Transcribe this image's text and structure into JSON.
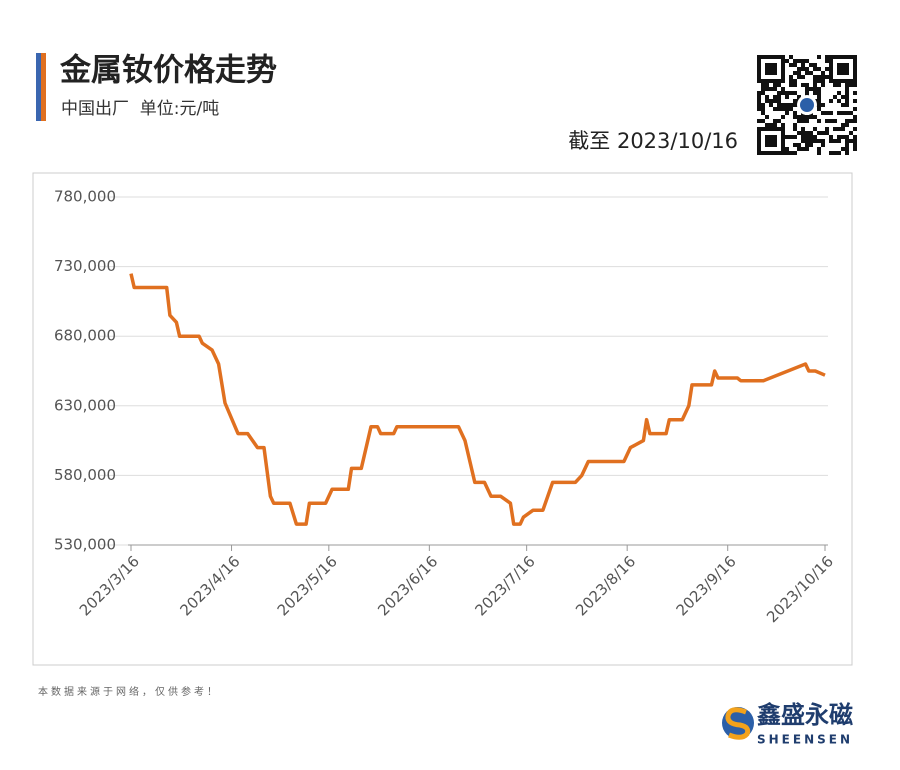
{
  "chart_data": {
    "type": "line",
    "title": "金属钕价格走势",
    "subtitle": "中国出厂  单位:元/吨",
    "date_note": "截至 2023/10/16",
    "source": "本数据来源于网络，仅供参考！",
    "brand": "鑫盛永磁",
    "brand_latin": "SHEENSEN",
    "color": "#e07020",
    "x": [
      "2023/3/16",
      "2023/3/17",
      "2023/3/27",
      "2023/3/28",
      "2023/3/30",
      "2023/3/31",
      "2023/4/6",
      "2023/4/7",
      "2023/4/10",
      "2023/4/12",
      "2023/4/14",
      "2023/4/18",
      "2023/4/21",
      "2023/4/24",
      "2023/4/26",
      "2023/4/28",
      "2023/4/29",
      "2023/5/4",
      "2023/5/6",
      "2023/5/9",
      "2023/5/10",
      "2023/5/15",
      "2023/5/17",
      "2023/5/22",
      "2023/5/23",
      "2023/5/26",
      "2023/5/29",
      "2023/5/31",
      "2023/6/1",
      "2023/6/5",
      "2023/6/6",
      "2023/6/25",
      "2023/6/27",
      "2023/6/30",
      "2023/7/3",
      "2023/7/5",
      "2023/7/8",
      "2023/7/11",
      "2023/7/12",
      "2023/7/14",
      "2023/7/15",
      "2023/7/18",
      "2023/7/21",
      "2023/7/24",
      "2023/7/31",
      "2023/8/2",
      "2023/8/4",
      "2023/8/15",
      "2023/8/17",
      "2023/8/21",
      "2023/8/22",
      "2023/8/23",
      "2023/8/28",
      "2023/8/29",
      "2023/9/2",
      "2023/9/4",
      "2023/9/5",
      "2023/9/11",
      "2023/9/12",
      "2023/9/13",
      "2023/9/19",
      "2023/9/20",
      "2023/9/27",
      "2023/10/10",
      "2023/10/11",
      "2023/10/13",
      "2023/10/16"
    ],
    "values": [
      725000,
      715000,
      715000,
      695000,
      690000,
      680000,
      680000,
      675000,
      670000,
      660000,
      632000,
      610000,
      610000,
      600000,
      600000,
      565000,
      560000,
      560000,
      545000,
      545000,
      560000,
      560000,
      570000,
      570000,
      585000,
      585000,
      615000,
      615000,
      610000,
      610000,
      615000,
      615000,
      605000,
      575000,
      575000,
      565000,
      565000,
      560000,
      545000,
      545000,
      550000,
      555000,
      555000,
      575000,
      575000,
      580000,
      590000,
      590000,
      600000,
      605000,
      620000,
      610000,
      610000,
      620000,
      620000,
      630000,
      645000,
      645000,
      655000,
      650000,
      650000,
      648000,
      648000,
      660000,
      655000,
      655000,
      652000
    ],
    "xlim": [
      "2023/3/16",
      "2023/10/16"
    ],
    "xticks": [
      "2023/3/16",
      "2023/4/16",
      "2023/5/16",
      "2023/6/16",
      "2023/7/16",
      "2023/8/16",
      "2023/9/16",
      "2023/10/16"
    ],
    "ylim": [
      530000,
      780000
    ],
    "yticks": [
      {
        "value": 530000,
        "label": "530,000"
      },
      {
        "value": 580000,
        "label": "580,000"
      },
      {
        "value": 630000,
        "label": "630,000"
      },
      {
        "value": 680000,
        "label": "680,000"
      },
      {
        "value": 730000,
        "label": "730,000"
      },
      {
        "value": 780000,
        "label": "780,000"
      }
    ],
    "grid": true
  }
}
